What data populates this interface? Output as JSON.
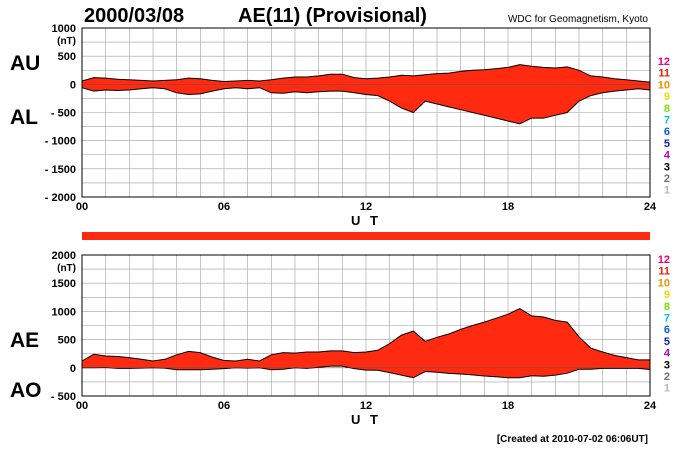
{
  "header": {
    "date": "2000/03/08",
    "title": "AE(11) (Provisional)",
    "credit": "WDC for Geomagnetism, Kyoto"
  },
  "footer": {
    "created": "[Created at 2010-07-02 06:06UT]"
  },
  "colors": {
    "fill": "#ff2a10",
    "edge": "#000000",
    "grid": "#a0a0a0",
    "ao_line": "#222222"
  },
  "legend": [
    {
      "label": "12",
      "color": "#e8007a"
    },
    {
      "label": "11",
      "color": "#e82008"
    },
    {
      "label": "10",
      "color": "#f09000"
    },
    {
      "label": "9",
      "color": "#e8e000"
    },
    {
      "label": "8",
      "color": "#80e000"
    },
    {
      "label": "7",
      "color": "#00c8c8"
    },
    {
      "label": "6",
      "color": "#0060e0"
    },
    {
      "label": "5",
      "color": "#1020b0"
    },
    {
      "label": "4",
      "color": "#c000c0"
    },
    {
      "label": "3",
      "color": "#000000"
    },
    {
      "label": "2",
      "color": "#707070"
    },
    {
      "label": "1",
      "color": "#b8b8b8"
    }
  ],
  "chart_data": [
    {
      "type": "area",
      "panel": "AU/AL",
      "labels": {
        "upper": "AU",
        "lower": "AL"
      },
      "xlabel": "U T",
      "ylabel_unit": "(nT)",
      "xlim": [
        0,
        24
      ],
      "ylim": [
        -2000,
        1000
      ],
      "xticks": [
        0,
        6,
        12,
        18,
        24
      ],
      "xtick_labels": [
        "00",
        "06",
        "12",
        "18",
        "24"
      ],
      "yticks": [
        1000,
        500,
        0,
        -500,
        -1000,
        -1500,
        -2000
      ],
      "ytick_labels": [
        "1000",
        "500",
        "0",
        "- 500",
        "- 1000",
        "- 1500",
        "- 2000"
      ],
      "grid": true,
      "x": [
        0,
        0.5,
        1,
        1.5,
        2,
        2.5,
        3,
        3.5,
        4,
        4.5,
        5,
        5.5,
        6,
        6.5,
        7,
        7.5,
        8,
        8.5,
        9,
        9.5,
        10,
        10.5,
        11,
        11.5,
        12,
        12.5,
        13,
        13.5,
        14,
        14.5,
        15,
        15.5,
        16,
        16.5,
        17,
        17.5,
        18,
        18.5,
        19,
        19.5,
        20,
        20.5,
        21,
        21.5,
        22,
        22.5,
        23,
        23.5,
        24
      ],
      "series": [
        {
          "name": "AU",
          "values": [
            60,
            120,
            110,
            90,
            80,
            70,
            60,
            70,
            80,
            110,
            100,
            70,
            50,
            60,
            70,
            60,
            80,
            110,
            130,
            130,
            150,
            180,
            180,
            120,
            100,
            110,
            130,
            160,
            150,
            170,
            190,
            200,
            230,
            250,
            260,
            280,
            300,
            350,
            320,
            300,
            290,
            310,
            250,
            150,
            130,
            100,
            80,
            60,
            40
          ]
        },
        {
          "name": "AL",
          "values": [
            -60,
            -120,
            -100,
            -110,
            -100,
            -80,
            -60,
            -80,
            -150,
            -180,
            -170,
            -120,
            -80,
            -60,
            -80,
            -60,
            -150,
            -160,
            -130,
            -150,
            -130,
            -120,
            -120,
            -150,
            -180,
            -200,
            -300,
            -420,
            -500,
            -300,
            -350,
            -400,
            -450,
            -500,
            -550,
            -600,
            -650,
            -700,
            -600,
            -600,
            -550,
            -500,
            -300,
            -200,
            -150,
            -120,
            -100,
            -80,
            -100
          ]
        }
      ]
    },
    {
      "type": "area",
      "panel": "AE/AO",
      "labels": {
        "upper": "AE",
        "lower": "AO"
      },
      "xlabel": "U T",
      "ylabel_unit": "(nT)",
      "xlim": [
        0,
        24
      ],
      "ylim": [
        -500,
        2000
      ],
      "xticks": [
        0,
        6,
        12,
        18,
        24
      ],
      "xtick_labels": [
        "00",
        "06",
        "12",
        "18",
        "24"
      ],
      "yticks": [
        2000,
        1500,
        1000,
        500,
        0,
        -500
      ],
      "ytick_labels": [
        "2000",
        "1500",
        "1000",
        "500",
        "0",
        "- 500"
      ],
      "grid": true,
      "x": [
        0,
        0.5,
        1,
        1.5,
        2,
        2.5,
        3,
        3.5,
        4,
        4.5,
        5,
        5.5,
        6,
        6.5,
        7,
        7.5,
        8,
        8.5,
        9,
        9.5,
        10,
        10.5,
        11,
        11.5,
        12,
        12.5,
        13,
        13.5,
        14,
        14.5,
        15,
        15.5,
        16,
        16.5,
        17,
        17.5,
        18,
        18.5,
        19,
        19.5,
        20,
        20.5,
        21,
        21.5,
        22,
        22.5,
        23,
        23.5,
        24
      ],
      "series": [
        {
          "name": "AE",
          "values": [
            120,
            240,
            210,
            200,
            180,
            150,
            120,
            150,
            230,
            290,
            270,
            190,
            130,
            120,
            150,
            120,
            230,
            270,
            260,
            280,
            280,
            300,
            300,
            270,
            280,
            310,
            430,
            580,
            650,
            470,
            540,
            600,
            680,
            750,
            810,
            880,
            950,
            1050,
            920,
            900,
            840,
            810,
            550,
            350,
            280,
            220,
            180,
            140,
            140
          ]
        },
        {
          "name": "AO",
          "values": [
            0,
            0,
            5,
            -10,
            -10,
            -5,
            0,
            -5,
            -35,
            -35,
            -35,
            -25,
            -15,
            0,
            -5,
            0,
            -35,
            -25,
            0,
            -10,
            10,
            30,
            30,
            -15,
            -40,
            -45,
            -85,
            -130,
            -175,
            -65,
            -80,
            -100,
            -110,
            -125,
            -145,
            -160,
            -175,
            -175,
            -140,
            -150,
            -130,
            -95,
            -25,
            -25,
            -10,
            -10,
            -10,
            -10,
            -30
          ]
        }
      ]
    }
  ]
}
